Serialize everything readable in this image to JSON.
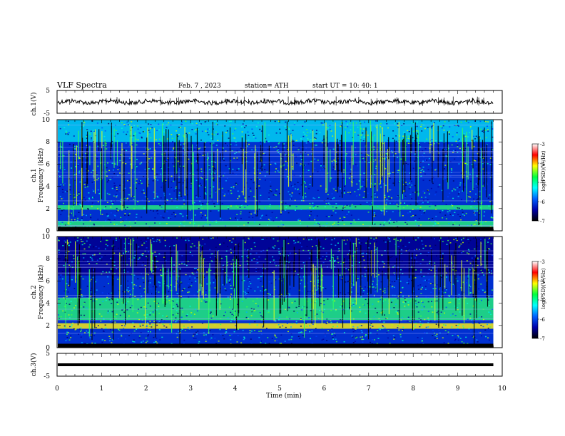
{
  "header": {
    "title": "VLF  Spectra",
    "date": "Feb. 7  , 2023",
    "station": "station= ATH",
    "start": "start  UT  =    10: 40: 1"
  },
  "axes": {
    "time_label": "Time  (min)",
    "ch1_wave_label": "ch.1(V)",
    "ch3_wave_label": "ch.3(V)",
    "ch1_freq_label": "ch.1",
    "ch2_freq_label": "ch.2",
    "freq_label": "Frequency  (kHz)",
    "colorbar_label": "log(PSD)(V²/Hz)"
  },
  "chart_data": {
    "type": "heatmap",
    "time_range_min": [
      0,
      10
    ],
    "data_end_min": 9.8,
    "x_ticks": [
      0,
      1,
      2,
      3,
      4,
      5,
      6,
      7,
      8,
      9,
      10
    ],
    "waveform_ylim": [
      -5,
      5
    ],
    "waveform_ticks": [
      "5",
      "-5"
    ],
    "freq_ylim_khz": [
      0,
      10
    ],
    "freq_ticks": [
      0,
      2,
      4,
      6,
      8,
      10
    ],
    "colorbar_range": [
      -7,
      -3
    ],
    "colorbar_ticks": [
      -3,
      -4,
      -5,
      -6,
      -7
    ],
    "colormap": [
      "#000000",
      "#0000aa",
      "#0060ff",
      "#00ffff",
      "#00ff40",
      "#ffff00",
      "#ff0000",
      "#ffffff"
    ],
    "ch1_waveform_offset_v": 0,
    "ch3_waveform_offset_v": 0,
    "ch1_bands_khz": [
      {
        "low": 0.0,
        "high": 0.35,
        "level": "black"
      },
      {
        "low": 0.35,
        "high": 0.9,
        "level": "green"
      },
      {
        "low": 1.9,
        "high": 2.3,
        "level": "green"
      },
      {
        "low": 3.5,
        "high": 6.5,
        "level": "blue"
      },
      {
        "low": 8.0,
        "high": 10.0,
        "level": "cyan"
      }
    ],
    "ch2_bands_khz": [
      {
        "low": 0.0,
        "high": 0.35,
        "level": "black"
      },
      {
        "low": 1.7,
        "high": 2.2,
        "level": "yellow"
      },
      {
        "low": 2.5,
        "high": 4.5,
        "level": "green"
      },
      {
        "low": 6.5,
        "high": 10.0,
        "level": "darkblue"
      }
    ]
  }
}
